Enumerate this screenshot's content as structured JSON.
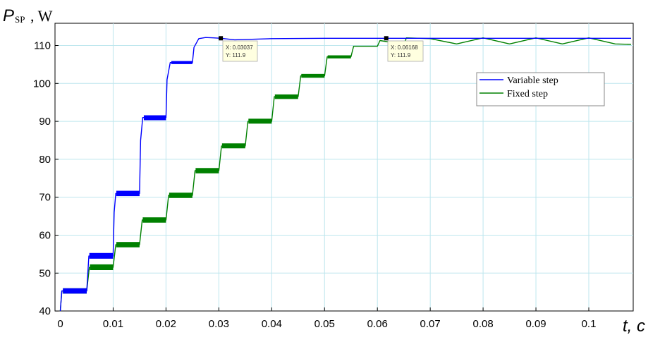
{
  "chart_data": {
    "type": "line",
    "ylabel": {
      "symbol": "P",
      "subscript": "SP",
      "unit": ", W"
    },
    "xlabel": "t, c",
    "xlim": [
      0,
      0.108
    ],
    "ylim": [
      39.5,
      115
    ],
    "xticks": [
      0,
      0.01,
      0.02,
      0.03,
      0.04,
      0.05,
      0.06,
      0.07,
      0.08,
      0.09,
      0.1
    ],
    "xtick_labels": [
      "0",
      "0.01",
      "0.02",
      "0.03",
      "0.04",
      "0.05",
      "0.06",
      "0.07",
      "0.08",
      "0.09",
      "0.1"
    ],
    "yticks": [
      40,
      50,
      60,
      70,
      80,
      90,
      100,
      110
    ],
    "ytick_labels": [
      "40",
      "50",
      "60",
      "70",
      "80",
      "90",
      "100",
      "110"
    ],
    "grid": true,
    "legend_position": "right",
    "series": [
      {
        "name": "Variable step",
        "color": "#0000ff",
        "x": [
          0,
          0.0003,
          0.005,
          0.0053,
          0.0054,
          0.01,
          0.0102,
          0.0105,
          0.015,
          0.0152,
          0.0156,
          0.02,
          0.0202,
          0.0208,
          0.025,
          0.0253,
          0.0262,
          0.0275,
          0.029,
          0.0304,
          0.033,
          0.04,
          0.05,
          0.06,
          0.07,
          0.08,
          0.09,
          0.1,
          0.108
        ],
        "y": [
          40,
          45.3,
          45.3,
          52,
          54.5,
          54.5,
          66,
          71,
          71,
          85,
          91,
          91,
          101,
          105.5,
          105.5,
          109.5,
          111.8,
          112.1,
          112,
          111.9,
          111.5,
          111.8,
          111.9,
          111.9,
          111.9,
          111.9,
          111.9,
          111.9,
          111.9
        ],
        "band": [
          [
            0.0005,
            0.005,
            44.6,
            46.0
          ],
          [
            0.0055,
            0.01,
            53.8,
            55.3
          ],
          [
            0.0106,
            0.015,
            70.3,
            71.7
          ],
          [
            0.0158,
            0.02,
            90.3,
            91.6
          ],
          [
            0.021,
            0.025,
            105.1,
            105.9
          ]
        ]
      },
      {
        "name": "Fixed step",
        "color": "#008000",
        "x": [
          0,
          0.0003,
          0.005,
          0.0055,
          0.01,
          0.0105,
          0.015,
          0.0155,
          0.02,
          0.0205,
          0.025,
          0.0255,
          0.03,
          0.0305,
          0.035,
          0.0355,
          0.04,
          0.0405,
          0.045,
          0.0455,
          0.05,
          0.0505,
          0.055,
          0.0555,
          0.06,
          0.0605,
          0.065,
          0.0655,
          0.07,
          0.075,
          0.08,
          0.085,
          0.09,
          0.095,
          0.1,
          0.105,
          0.108
        ],
        "y": [
          40,
          45.3,
          45.3,
          51.5,
          51.5,
          57.5,
          57.5,
          64,
          64,
          70.5,
          70.5,
          77,
          77,
          83.5,
          83.5,
          90,
          90,
          96.5,
          96.5,
          102,
          102,
          107,
          107,
          109.8,
          109.8,
          111.3,
          110.3,
          112,
          111.8,
          110.4,
          112,
          110.4,
          112,
          110.4,
          112,
          110.4,
          110.3
        ],
        "band": [
          [
            0.0005,
            0.005,
            44.6,
            46.0
          ],
          [
            0.0056,
            0.01,
            50.8,
            52.3
          ],
          [
            0.0106,
            0.015,
            56.8,
            58.2
          ],
          [
            0.0156,
            0.02,
            63.3,
            64.7
          ],
          [
            0.0206,
            0.025,
            69.8,
            71.2
          ],
          [
            0.0256,
            0.03,
            76.3,
            77.7
          ],
          [
            0.0306,
            0.035,
            82.9,
            84.2
          ],
          [
            0.0356,
            0.04,
            89.4,
            90.7
          ],
          [
            0.0406,
            0.045,
            95.9,
            97.1
          ],
          [
            0.0456,
            0.05,
            101.5,
            102.5
          ],
          [
            0.0506,
            0.055,
            106.6,
            107.4
          ]
        ]
      }
    ],
    "datatips": [
      {
        "x": 0.03037,
        "y": 111.9,
        "line1": "X: 0.03037",
        "line2": "Y: 111.9"
      },
      {
        "x": 0.06168,
        "y": 111.9,
        "line1": "X: 0.06168",
        "line2": "Y: 111.9"
      }
    ]
  }
}
